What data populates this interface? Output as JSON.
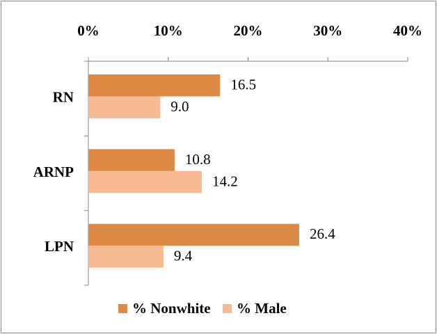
{
  "chart_data": {
    "type": "bar",
    "orientation": "horizontal",
    "categories": [
      "RN",
      "ARNP",
      "LPN"
    ],
    "series": [
      {
        "name": "% Nonwhite",
        "color": "#dd8a45",
        "values": [
          16.5,
          10.8,
          26.4
        ],
        "value_labels": [
          "16.5",
          "10.8",
          "26.4"
        ]
      },
      {
        "name": "% Male",
        "color": "#f8b995",
        "values": [
          9,
          14.2,
          9.4
        ],
        "value_labels": [
          "9.0",
          "14.2",
          "9.4"
        ]
      }
    ],
    "xlim": [
      0,
      40
    ],
    "xticks": [
      {
        "value": 0,
        "label": "0%"
      },
      {
        "value": 10,
        "label": "10%"
      },
      {
        "value": 20,
        "label": "20%"
      },
      {
        "value": 30,
        "label": "30%"
      },
      {
        "value": 40,
        "label": "40%"
      }
    ],
    "legend": "bottom"
  }
}
